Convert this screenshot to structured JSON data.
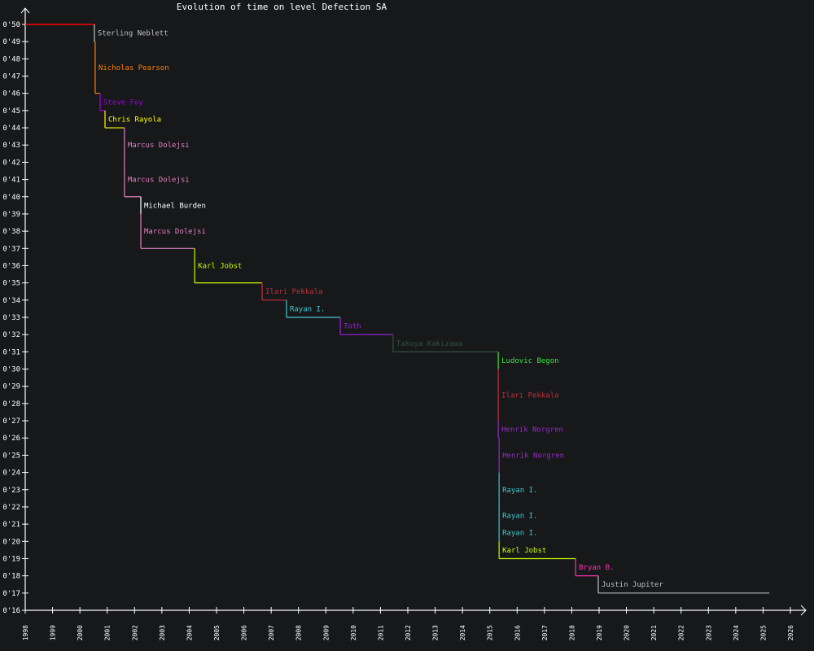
{
  "chart_data": {
    "type": "line",
    "subtype": "step",
    "title": "Evolution of time on level Defection SA",
    "xlabel": "",
    "ylabel": "",
    "xlim": [
      1998,
      2026
    ],
    "ylim": [
      16,
      50
    ],
    "x_ticks": [
      "1998",
      "1999",
      "2000",
      "2001",
      "2002",
      "2003",
      "2004",
      "2005",
      "2006",
      "2007",
      "2008",
      "2009",
      "2010",
      "2011",
      "2012",
      "2013",
      "2014",
      "2015",
      "2016",
      "2017",
      "2018",
      "2019",
      "2020",
      "2021",
      "2022",
      "2023",
      "2024",
      "2025",
      "2026"
    ],
    "y_ticks": [
      "0'16",
      "0'17",
      "0'18",
      "0'19",
      "0'20",
      "0'21",
      "0'22",
      "0'23",
      "0'24",
      "0'25",
      "0'26",
      "0'27",
      "0'28",
      "0'29",
      "0'30",
      "0'31",
      "0'32",
      "0'33",
      "0'34",
      "0'35",
      "0'36",
      "0'37",
      "0'38",
      "0'39",
      "0'40",
      "0'41",
      "0'42",
      "0'43",
      "0'44",
      "0'45",
      "0'46",
      "0'47",
      "0'48",
      "0'49",
      "0'50"
    ],
    "grid": false,
    "start": {
      "year": 1998.0,
      "time": 50,
      "color": "#ff0000"
    },
    "end_year": 2025.23,
    "records": [
      {
        "name": "Sterling Neblett",
        "year": 2000.53,
        "time": 49,
        "color": "#c0c0c0"
      },
      {
        "name": "Nicholas Pearson",
        "year": 2000.56,
        "time": 46,
        "color": "#ff8000"
      },
      {
        "name": "Steve Foy",
        "year": 2000.74,
        "time": 45,
        "color": "#a000e0"
      },
      {
        "name": "Chris Rayola",
        "year": 2000.92,
        "time": 44,
        "color": "#ffff00"
      },
      {
        "name": "Marcus Dolejsi",
        "year": 2001.63,
        "time": 42,
        "color": "#e080c0"
      },
      {
        "name": "Marcus Dolejsi",
        "year": 2001.63,
        "time": 40,
        "color": "#e080c0"
      },
      {
        "name": "Michael Burden",
        "year": 2002.23,
        "time": 39,
        "color": "#ffffff"
      },
      {
        "name": "Marcus Dolejsi",
        "year": 2002.23,
        "time": 37,
        "color": "#e080c0"
      },
      {
        "name": "Karl Jobst",
        "year": 2004.2,
        "time": 35,
        "color": "#c8ff00"
      },
      {
        "name": "Ilari Pekkala",
        "year": 2006.67,
        "time": 34,
        "color": "#c03040"
      },
      {
        "name": "Rayan I.",
        "year": 2007.56,
        "time": 33,
        "color": "#40c8d0"
      },
      {
        "name": "Toth",
        "year": 2009.53,
        "time": 32,
        "color": "#a020e0"
      },
      {
        "name": "Takuya Kakizawa",
        "year": 2011.46,
        "time": 31,
        "color": "#305040"
      },
      {
        "name": "Ludovic Begon",
        "year": 2015.31,
        "time": 30,
        "color": "#40e040"
      },
      {
        "name": "Ilari Pekkala",
        "year": 2015.31,
        "time": 27,
        "color": "#c03040"
      },
      {
        "name": "Henrik Norgren",
        "year": 2015.31,
        "time": 26,
        "color": "#9030c0"
      },
      {
        "name": "Henrik Norgren",
        "year": 2015.34,
        "time": 24,
        "color": "#9030c0"
      },
      {
        "name": "Rayan I.",
        "year": 2015.34,
        "time": 22,
        "color": "#40c8d0"
      },
      {
        "name": "Rayan I.",
        "year": 2015.34,
        "time": 21,
        "color": "#40c8d0"
      },
      {
        "name": "Rayan I.",
        "year": 2015.34,
        "time": 20,
        "color": "#40c8d0"
      },
      {
        "name": "Karl Jobst",
        "year": 2015.34,
        "time": 19,
        "color": "#c8ff00"
      },
      {
        "name": "Bryan B.",
        "year": 2018.14,
        "time": 18,
        "color": "#ff30b0"
      },
      {
        "name": "Justin Jupiter",
        "year": 2018.97,
        "time": 17,
        "color": "#c0c0c0"
      }
    ]
  },
  "colors": {
    "background": "#17181a",
    "axis": "#ffffff"
  }
}
